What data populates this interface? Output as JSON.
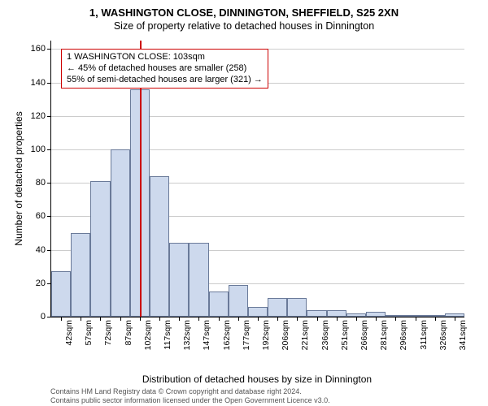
{
  "title_main": "1, WASHINGTON CLOSE, DINNINGTON, SHEFFIELD, S25 2XN",
  "title_sub": "Size of property relative to detached houses in Dinnington",
  "ylabel": "Number of detached properties",
  "xlabel": "Distribution of detached houses by size in Dinnington",
  "chart": {
    "ylim": [
      0,
      165
    ],
    "ytick_step": 20,
    "ytick_max": 160,
    "bar_color": "#cdd9ed",
    "bar_border": "#6a7a99",
    "grid_color": "#cccccc",
    "refline_color": "#cc0000",
    "refline_x": 103,
    "x_start": 35,
    "x_bin": 15,
    "x_labels": [
      "42sqm",
      "57sqm",
      "72sqm",
      "87sqm",
      "102sqm",
      "117sqm",
      "132sqm",
      "147sqm",
      "162sqm",
      "177sqm",
      "192sqm",
      "206sqm",
      "221sqm",
      "236sqm",
      "251sqm",
      "266sqm",
      "281sqm",
      "296sqm",
      "311sqm",
      "326sqm",
      "341sqm"
    ],
    "values": [
      27,
      50,
      81,
      100,
      136,
      84,
      44,
      44,
      15,
      19,
      6,
      11,
      11,
      4,
      4,
      2,
      3,
      1,
      1,
      1,
      2
    ]
  },
  "annotation": {
    "line1": "1 WASHINGTON CLOSE: 103sqm",
    "line2": "← 45% of detached houses are smaller (258)",
    "line3": "55% of semi-detached houses are larger (321) →"
  },
  "credits": {
    "line1": "Contains HM Land Registry data © Crown copyright and database right 2024.",
    "line2": "Contains public sector information licensed under the Open Government Licence v3.0."
  }
}
